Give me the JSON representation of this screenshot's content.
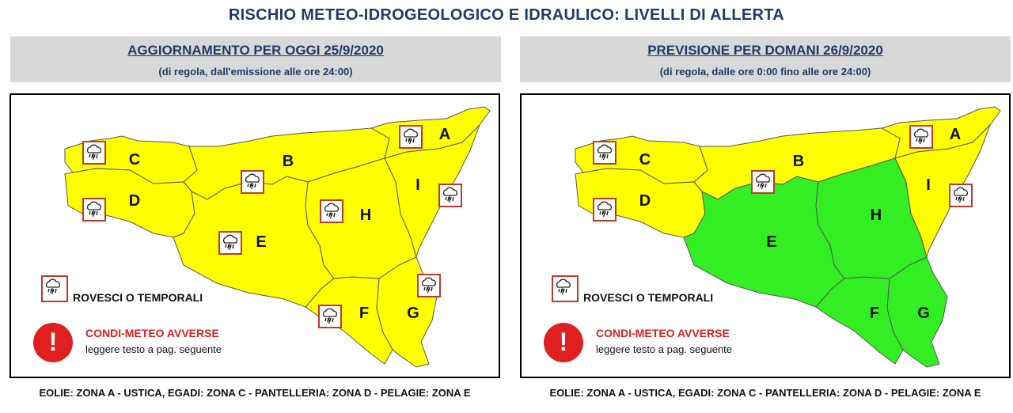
{
  "title": "RISCHIO METEO-IDROGEOLOGICO E IDRAULICO: LIVELLI DI ALLERTA",
  "colors": {
    "yellow": "#ffff00",
    "green": "#33ee22",
    "alert_red": "#e02020",
    "heading_blue": "#1f3a68"
  },
  "panels": [
    {
      "heading": "AGGIORNAMENTO PER OGGI 25/9/2020",
      "subheading": "(di regola, dall'emissione alle ore 24:00)",
      "zones": [
        {
          "id": "A",
          "level": "yellow"
        },
        {
          "id": "B",
          "level": "yellow"
        },
        {
          "id": "C",
          "level": "yellow"
        },
        {
          "id": "D",
          "level": "yellow"
        },
        {
          "id": "E",
          "level": "yellow"
        },
        {
          "id": "F",
          "level": "yellow"
        },
        {
          "id": "G",
          "level": "yellow"
        },
        {
          "id": "H",
          "level": "yellow"
        },
        {
          "id": "I",
          "level": "yellow"
        }
      ],
      "storm_icon_zones": [
        "A",
        "B",
        "C",
        "D",
        "E",
        "F",
        "G",
        "H",
        "I"
      ],
      "legend_storm": "ROVESCI O TEMPORALI",
      "alert_title": "CONDI-METEO AVVERSE",
      "alert_sub": "leggere testo a pag. seguente",
      "footer": "EOLIE: ZONA A - USTICA, EGADI: ZONA C - PANTELLERIA: ZONA D - PELAGIE: ZONA E"
    },
    {
      "heading": "PREVISIONE PER DOMANI 26/9/2020",
      "subheading": "(di regola, dalle ore 0:00 fino alle ore 24:00)",
      "zones": [
        {
          "id": "A",
          "level": "yellow"
        },
        {
          "id": "B",
          "level": "yellow"
        },
        {
          "id": "C",
          "level": "yellow"
        },
        {
          "id": "D",
          "level": "yellow"
        },
        {
          "id": "E",
          "level": "green"
        },
        {
          "id": "F",
          "level": "green"
        },
        {
          "id": "G",
          "level": "green"
        },
        {
          "id": "H",
          "level": "green"
        },
        {
          "id": "I",
          "level": "yellow"
        }
      ],
      "storm_icon_zones": [
        "A",
        "B",
        "C",
        "D",
        "I"
      ],
      "legend_storm": "ROVESCI O TEMPORALI",
      "alert_title": "CONDI-METEO AVVERSE",
      "alert_sub": "leggere testo a pag. seguente",
      "footer": "EOLIE: ZONA A - USTICA, EGADI: ZONA C - PANTELLERIA: ZONA D - PELAGIE: ZONA E"
    }
  ]
}
